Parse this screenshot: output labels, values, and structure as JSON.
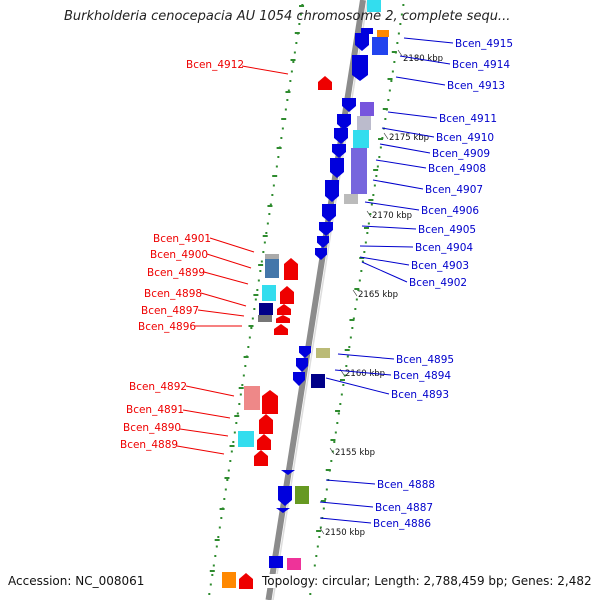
{
  "title": "Burkholderia cenocepacia AU 1054 chromosome 2, complete sequ...",
  "footer": {
    "accession": "Accession: NC_008061",
    "summary": "Topology: circular; Length: 2,788,459 bp; Genes: 2,482"
  },
  "colors": {
    "forward_strand": "#ee0000",
    "reverse_strand": "#0000cc",
    "backbone": "#8c8c8c",
    "tick": "#2e8b2e"
  },
  "chart_data": {
    "type": "gene-map",
    "kbp_ticks": [
      "2180 kbp",
      "2175 kbp",
      "2170 kbp",
      "2165 kbp",
      "2160 kbp",
      "2155 kbp",
      "2150 kbp"
    ],
    "forward_genes": [
      "Bcen_4912",
      "Bcen_4901",
      "Bcen_4900",
      "Bcen_4899",
      "Bcen_4898",
      "Bcen_4897",
      "Bcen_4896",
      "Bcen_4892",
      "Bcen_4891",
      "Bcen_4890",
      "Bcen_4889"
    ],
    "reverse_genes": [
      "Bcen_4915",
      "Bcen_4914",
      "Bcen_4913",
      "Bcen_4911",
      "Bcen_4910",
      "Bcen_4909",
      "Bcen_4908",
      "Bcen_4907",
      "Bcen_4906",
      "Bcen_4905",
      "Bcen_4904",
      "Bcen_4903",
      "Bcen_4902",
      "Bcen_4895",
      "Bcen_4894",
      "Bcen_4893",
      "Bcen_4888",
      "Bcen_4887",
      "Bcen_4886"
    ]
  }
}
